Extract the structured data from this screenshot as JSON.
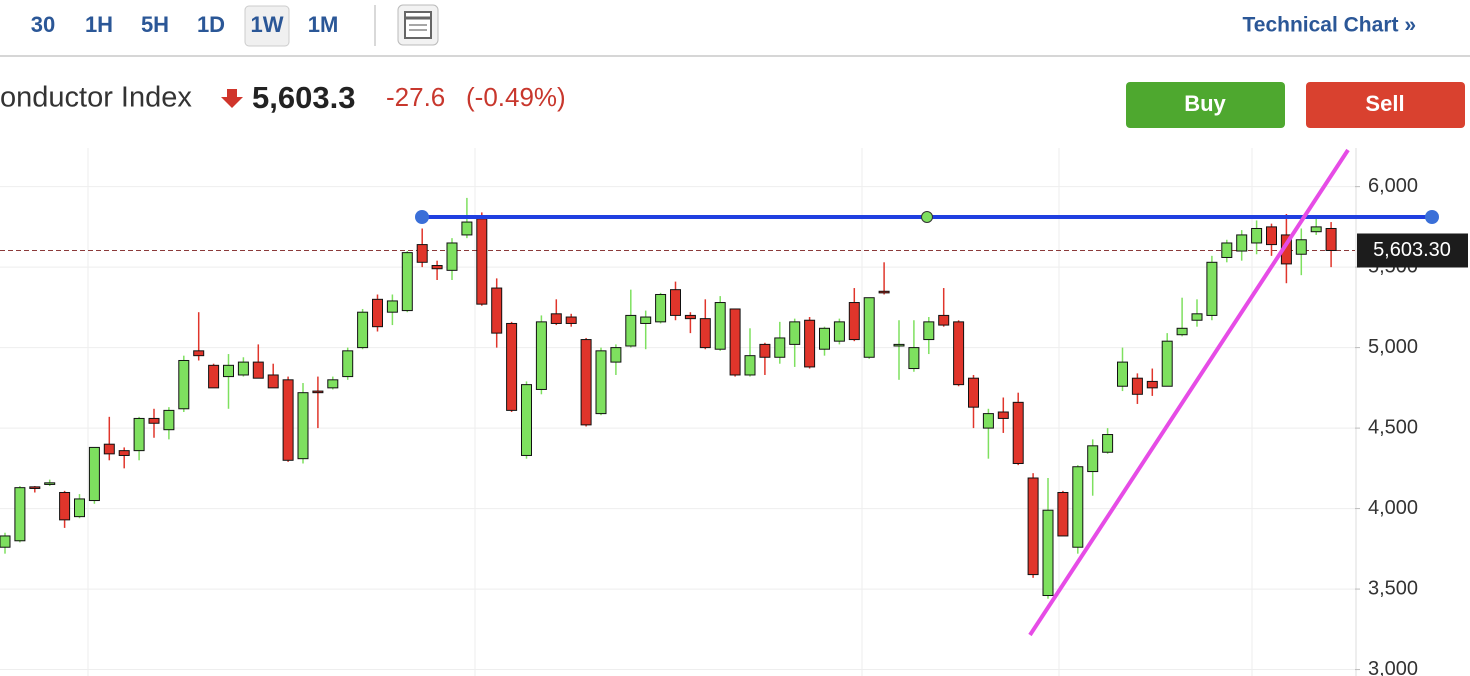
{
  "toolbar": {
    "intervals": [
      "30",
      "1H",
      "5H",
      "1D",
      "1W",
      "1M"
    ],
    "selected_index": 4,
    "technical_chart": "Technical Chart »"
  },
  "quote": {
    "name": "onductor Index",
    "price": "5,603.3",
    "change": "-27.6",
    "change_percent": "(-0.49%)"
  },
  "actions": {
    "buy": "Buy",
    "sell": "Sell"
  },
  "chart_data": {
    "type": "candlestick",
    "up_color": "#7ee05f",
    "down_color": "#e0352b",
    "grid": true,
    "ylim": [
      2960,
      6240
    ],
    "yticks": [
      {
        "value": 3000,
        "label": "3,000"
      },
      {
        "value": 3500,
        "label": "3,500"
      },
      {
        "value": 4000,
        "label": "4,000"
      },
      {
        "value": 4500,
        "label": "4,500"
      },
      {
        "value": 5000,
        "label": "5,000"
      },
      {
        "value": 5500,
        "label": "5,500"
      },
      {
        "value": 6000,
        "label": "6,000"
      }
    ],
    "last_price": {
      "value": 5603.3,
      "label": "5,603.30"
    },
    "open": [
      3760,
      3800,
      4135,
      4150,
      4100,
      3950,
      4050,
      4400,
      4360,
      4360,
      4560,
      4490,
      4620,
      4980,
      4890,
      4820,
      4830,
      4910,
      4830,
      4800,
      4310,
      4730,
      4750,
      4820,
      5000,
      5300,
      5220,
      5230,
      5640,
      5510,
      5480,
      5700,
      5800,
      5370,
      5150,
      4330,
      4740,
      5210,
      5190,
      5050,
      4590,
      4910,
      5010,
      5150,
      5160,
      5360,
      5200,
      5180,
      4990,
      5240,
      4830,
      5020,
      4940,
      5020,
      5170,
      4990,
      5040,
      5280,
      4940,
      5350,
      5010,
      4870,
      5050,
      5200,
      5160,
      4810,
      4500,
      4600,
      4660,
      4190,
      3460,
      4100,
      3760,
      4230,
      4350,
      4760,
      4810,
      4790,
      4760,
      5080,
      5170,
      5200,
      5560,
      5600,
      5650,
      5750,
      5700,
      5580,
      5720,
      5740
    ],
    "high": [
      3850,
      4140,
      4140,
      4180,
      4110,
      4090,
      4380,
      4570,
      4380,
      4570,
      4620,
      4630,
      4950,
      5220,
      4900,
      4960,
      4940,
      5020,
      4900,
      4820,
      4780,
      4820,
      4820,
      5000,
      5240,
      5330,
      5330,
      5600,
      5740,
      5540,
      5680,
      5930,
      5840,
      5430,
      5160,
      4790,
      5200,
      5300,
      5210,
      5060,
      5000,
      5020,
      5360,
      5230,
      5340,
      5410,
      5220,
      5300,
      5320,
      5240,
      5120,
      5030,
      5160,
      5180,
      5190,
      5130,
      5180,
      5370,
      5310,
      5530,
      5170,
      5170,
      5190,
      5370,
      5170,
      4830,
      4620,
      4690,
      4720,
      4220,
      4190,
      4110,
      4270,
      4430,
      4500,
      5000,
      4840,
      4870,
      5090,
      5310,
      5300,
      5570,
      5670,
      5730,
      5790,
      5770,
      5830,
      5740,
      5820,
      5780
    ],
    "low": [
      3720,
      3790,
      4100,
      4140,
      3880,
      3940,
      4030,
      4300,
      4250,
      4300,
      4440,
      4430,
      4600,
      4920,
      4750,
      4620,
      4820,
      4810,
      4750,
      4290,
      4280,
      4500,
      4740,
      4800,
      4990,
      5100,
      5140,
      5220,
      5500,
      5420,
      5420,
      5680,
      5260,
      5000,
      4600,
      4310,
      4710,
      5140,
      5130,
      4510,
      4580,
      4830,
      5000,
      4990,
      5150,
      5170,
      5090,
      4990,
      4980,
      4820,
      4820,
      4830,
      4900,
      4880,
      4870,
      4950,
      5020,
      5040,
      4930,
      5330,
      4800,
      4850,
      4960,
      5130,
      4760,
      4500,
      4310,
      4470,
      4270,
      3570,
      3440,
      3830,
      3720,
      4080,
      4340,
      4730,
      4650,
      4700,
      4760,
      5070,
      5130,
      5170,
      5530,
      5540,
      5580,
      5570,
      5400,
      5450,
      5700,
      5500
    ],
    "close": [
      3830,
      4130,
      4125,
      4160,
      3930,
      4060,
      4380,
      4340,
      4330,
      4560,
      4530,
      4610,
      4920,
      4950,
      4750,
      4890,
      4910,
      4810,
      4750,
      4300,
      4720,
      4720,
      4800,
      4980,
      5220,
      5130,
      5290,
      5590,
      5530,
      5490,
      5650,
      5780,
      5270,
      5090,
      4610,
      4770,
      5160,
      5150,
      5150,
      4520,
      4980,
      5000,
      5200,
      5190,
      5330,
      5200,
      5180,
      5000,
      5280,
      4830,
      4950,
      4940,
      5060,
      5160,
      4880,
      5120,
      5160,
      5050,
      5310,
      5340,
      5020,
      5000,
      5160,
      5140,
      4770,
      4630,
      4590,
      4560,
      4280,
      3590,
      3990,
      3830,
      4260,
      4390,
      4460,
      4910,
      4710,
      4750,
      5040,
      5120,
      5210,
      5530,
      5650,
      5700,
      5740,
      5640,
      5520,
      5670,
      5750,
      5603.3
    ]
  }
}
